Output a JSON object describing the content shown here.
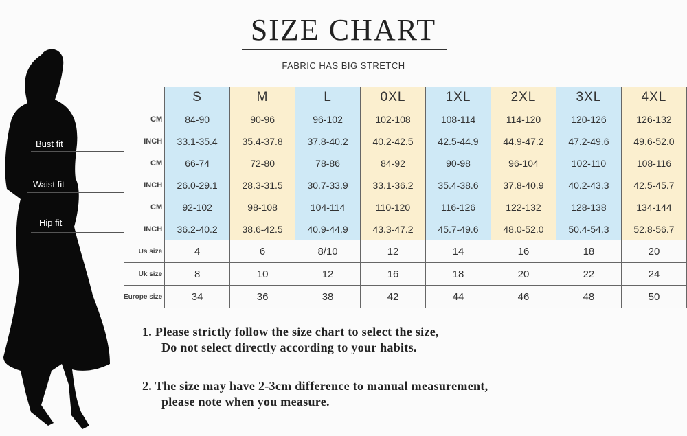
{
  "title": "SIZE CHART",
  "subtitle": "FABRIC HAS BIG STRETCH",
  "sizes": [
    "S",
    "M",
    "L",
    "0XL",
    "1XL",
    "2XL",
    "3XL",
    "4XL"
  ],
  "fit_labels": {
    "bust": "Bust fit",
    "waist": "Waist fit",
    "hip": "Hip fit"
  },
  "unit_labels": {
    "cm": "CM",
    "inch": "INCH"
  },
  "rows": [
    {
      "label": "CM",
      "values": [
        "84-90",
        "90-96",
        "96-102",
        "102-108",
        "108-114",
        "114-120",
        "120-126",
        "126-132"
      ]
    },
    {
      "label": "INCH",
      "values": [
        "33.1-35.4",
        "35.4-37.8",
        "37.8-40.2",
        "40.2-42.5",
        "42.5-44.9",
        "44.9-47.2",
        "47.2-49.6",
        "49.6-52.0"
      ]
    },
    {
      "label": "CM",
      "values": [
        "66-74",
        "72-80",
        "78-86",
        "84-92",
        "90-98",
        "96-104",
        "102-110",
        "108-116"
      ]
    },
    {
      "label": "INCH",
      "values": [
        "26.0-29.1",
        "28.3-31.5",
        "30.7-33.9",
        "33.1-36.2",
        "35.4-38.6",
        "37.8-40.9",
        "40.2-43.3",
        "42.5-45.7"
      ]
    },
    {
      "label": "CM",
      "values": [
        "92-102",
        "98-108",
        "104-114",
        "110-120",
        "116-126",
        "122-132",
        "128-138",
        "134-144"
      ]
    },
    {
      "label": "INCH",
      "values": [
        "36.2-40.2",
        "38.6-42.5",
        "40.9-44.9",
        "43.3-47.2",
        "45.7-49.6",
        "48.0-52.0",
        "50.4-54.3",
        "52.8-56.7"
      ]
    },
    {
      "label": "Us size",
      "values": [
        "4",
        "6",
        "8/10",
        "12",
        "14",
        "16",
        "18",
        "20"
      ]
    },
    {
      "label": "Uk size",
      "values": [
        "8",
        "10",
        "12",
        "16",
        "18",
        "20",
        "22",
        "24"
      ]
    },
    {
      "label": "Europe size",
      "values": [
        "34",
        "36",
        "38",
        "42",
        "44",
        "46",
        "48",
        "50"
      ]
    }
  ],
  "notes": [
    {
      "line1": "1.  Please strictly follow the size chart to select the size,",
      "line2": "Do not select directly according to your habits."
    },
    {
      "line1": "2.  The size may have 2-3cm difference  to manual measurement,",
      "line2": "please note when you measure."
    }
  ],
  "colors": {
    "blue": "#cfe9f6",
    "yellow": "#fbefcf"
  }
}
